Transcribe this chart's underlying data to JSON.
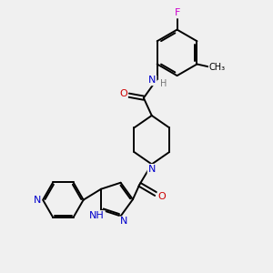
{
  "background_color": "#f0f0f0",
  "atom_colors": {
    "C": "#000000",
    "N": "#0000cc",
    "O": "#cc0000",
    "F": "#cc00cc",
    "H": "#777777"
  },
  "bond_color": "#000000",
  "bond_width": 1.4,
  "figsize": [
    3.0,
    3.0
  ],
  "dpi": 100
}
